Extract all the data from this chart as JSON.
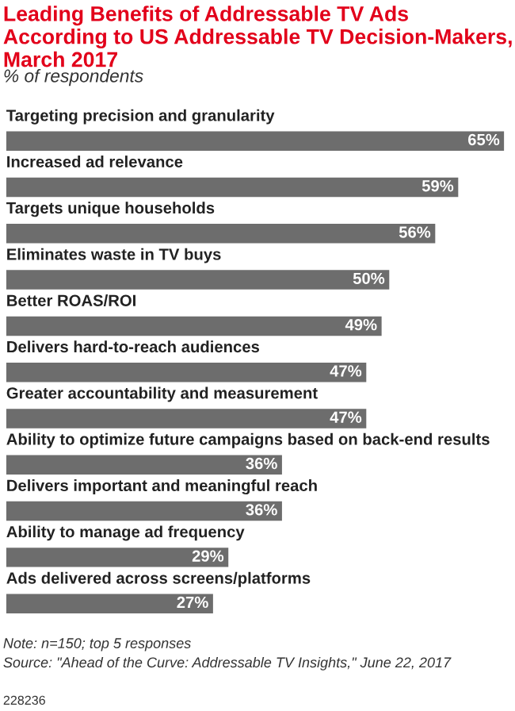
{
  "chart_data": {
    "type": "bar",
    "orientation": "horizontal",
    "title": "Leading Benefits of Addressable TV Ads According to US Addressable TV Decision-Makers, March 2017",
    "subtitle": "% of respondents",
    "categories": [
      "Targeting precision and granularity",
      "Increased ad relevance",
      "Targets unique households",
      "Eliminates waste in TV buys",
      "Better ROAS/ROI",
      "Delivers hard-to-reach audiences",
      "Greater accountability and measurement",
      "Ability to optimize future campaigns based on back-end results",
      "Delivers important and meaningful reach",
      "Ability to manage ad frequency",
      "Ads delivered across screens/platforms"
    ],
    "values": [
      65,
      59,
      56,
      50,
      49,
      47,
      47,
      36,
      36,
      29,
      27
    ],
    "value_labels": [
      "65%",
      "59%",
      "56%",
      "50%",
      "49%",
      "47%",
      "47%",
      "36%",
      "36%",
      "29%",
      "27%"
    ],
    "color": "#6d6d6d",
    "annotations": [
      "Note: n=150; top 5 responses",
      "Source: \"Ahead of the Curve: Addressable TV Insights,\" June 22, 2017",
      "228236"
    ]
  }
}
